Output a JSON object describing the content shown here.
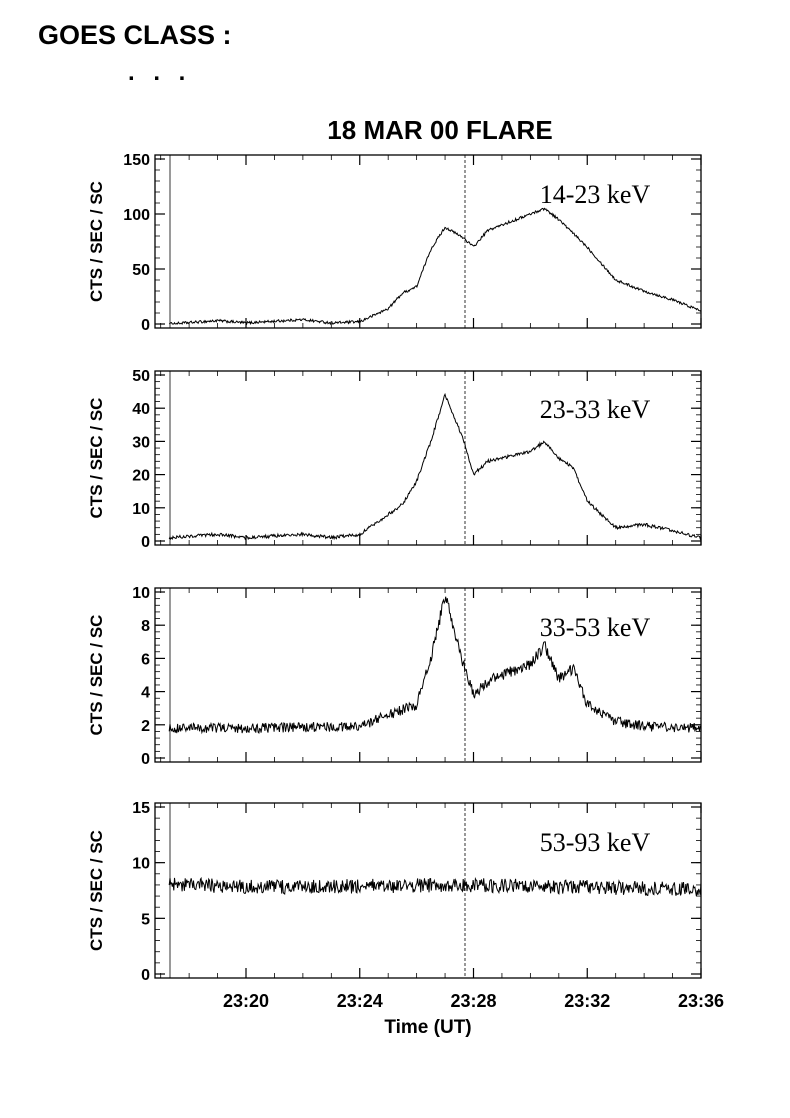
{
  "header": {
    "goes_class_label": "GOES CLASS :",
    "goes_class_value": ". . ."
  },
  "figure_title": "18 MAR 00 FLARE",
  "x_axis": {
    "label": "Time (UT)",
    "ticks": [
      "23:20",
      "23:24",
      "23:28",
      "23:32",
      "23:36"
    ]
  },
  "chart_data": [
    {
      "type": "line",
      "title": "18 MAR 00 FLARE",
      "series": [
        {
          "name": "14-23 keV"
        }
      ],
      "ylabel": "CTS / SEC / SC",
      "xlabel": "",
      "ylim": [
        0,
        150
      ],
      "yticks": [
        "0",
        "50",
        "100",
        "150"
      ],
      "xlim": [
        "23:16:48",
        "23:36:00"
      ],
      "x": [
        "23:17:18",
        "23:19:00",
        "23:20:00",
        "23:22:00",
        "23:23:00",
        "23:24:00",
        "23:25:00",
        "23:25:30",
        "23:26:00",
        "23:26:30",
        "23:27:00",
        "23:27:40",
        "23:28:00",
        "23:28:30",
        "23:29:00",
        "23:30:00",
        "23:30:30",
        "23:31:00",
        "23:32:00",
        "23:33:00",
        "23:34:00",
        "23:35:00",
        "23:36:00"
      ],
      "y": [
        0,
        3,
        1,
        4,
        1,
        2,
        14,
        28,
        34,
        68,
        88,
        78,
        70,
        85,
        90,
        100,
        105,
        95,
        70,
        40,
        30,
        22,
        12
      ],
      "grid": false
    },
    {
      "type": "line",
      "series": [
        {
          "name": "23-33 keV"
        }
      ],
      "ylabel": "CTS / SEC / SC",
      "ylim": [
        0,
        50
      ],
      "yticks": [
        "0",
        "10",
        "20",
        "30",
        "40",
        "50"
      ],
      "xlim": [
        "23:16:48",
        "23:36:00"
      ],
      "x": [
        "23:17:18",
        "23:19:00",
        "23:20:00",
        "23:22:00",
        "23:23:00",
        "23:24:00",
        "23:25:00",
        "23:25:30",
        "23:26:00",
        "23:26:30",
        "23:27:00",
        "23:27:40",
        "23:28:00",
        "23:28:30",
        "23:29:00",
        "23:30:00",
        "23:30:30",
        "23:31:00",
        "23:31:30",
        "23:32:00",
        "23:33:00",
        "23:34:00",
        "23:35:00",
        "23:36:00"
      ],
      "y": [
        1,
        2,
        1,
        2,
        1,
        2,
        8,
        11,
        18,
        30,
        44,
        30,
        20,
        24,
        25,
        27,
        30,
        25,
        22,
        12,
        4,
        5,
        3,
        1
      ],
      "grid": false
    },
    {
      "type": "line",
      "series": [
        {
          "name": "33-53 keV"
        }
      ],
      "ylabel": "CTS / SEC / SC",
      "ylim": [
        0,
        10
      ],
      "yticks": [
        "0",
        "2",
        "4",
        "6",
        "8",
        "10"
      ],
      "xlim": [
        "23:16:48",
        "23:36:00"
      ],
      "x": [
        "23:17:18",
        "23:20:00",
        "23:24:00",
        "23:25:00",
        "23:26:00",
        "23:26:30",
        "23:27:00",
        "23:27:40",
        "23:28:00",
        "23:28:30",
        "23:29:00",
        "23:30:00",
        "23:30:30",
        "23:31:00",
        "23:31:30",
        "23:32:00",
        "23:33:00",
        "23:34:00",
        "23:36:00"
      ],
      "y": [
        1.8,
        1.8,
        1.9,
        2.6,
        3.2,
        6.0,
        9.8,
        5.5,
        3.8,
        4.6,
        5.0,
        5.6,
        6.8,
        4.8,
        5.4,
        3.2,
        2.2,
        1.9,
        1.8
      ],
      "grid": false
    },
    {
      "type": "line",
      "series": [
        {
          "name": "53-93 keV"
        }
      ],
      "ylabel": "CTS / SEC / SC",
      "ylim": [
        0,
        15
      ],
      "yticks": [
        "0",
        "5",
        "10",
        "15"
      ],
      "xlim": [
        "23:16:48",
        "23:36:00"
      ],
      "x": [
        "23:17:18",
        "23:22:00",
        "23:27:00",
        "23:32:00",
        "23:36:00"
      ],
      "y": [
        8.0,
        7.8,
        8.0,
        7.8,
        7.6
      ],
      "grid": false
    }
  ]
}
